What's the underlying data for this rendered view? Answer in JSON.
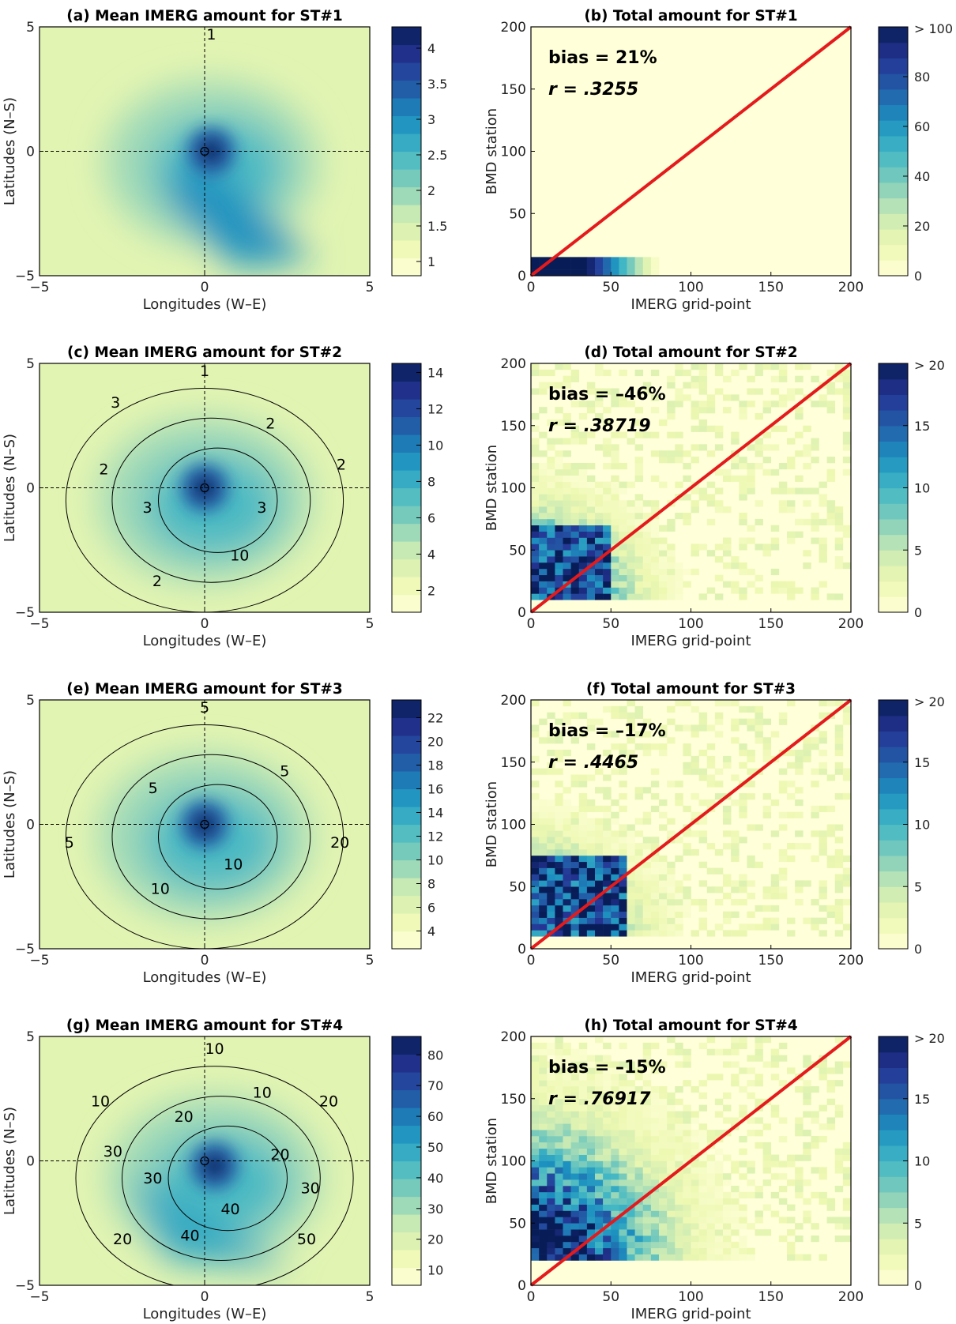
{
  "chart_data": [
    {
      "panel": "a",
      "type": "heatmap",
      "title": "(a) Mean IMERG amount for ST#1",
      "xlabel": "Longitudes (W–E)",
      "ylabel": "Latitudes (N–S)",
      "xlim": [
        -5,
        5
      ],
      "ylim": [
        -5,
        5
      ],
      "xticks": [
        "−5",
        "0",
        "5"
      ],
      "yticks": [
        "5",
        "0",
        "−5"
      ],
      "colorbar": {
        "min": 0.8,
        "max": 4.3,
        "ticks": [
          "1",
          "1.5",
          "2",
          "2.5",
          "3",
          "3.5",
          "4"
        ]
      },
      "peak": 4.3,
      "peak_lon": 0.2,
      "peak_lat": 0,
      "contour_labels": [
        "1"
      ]
    },
    {
      "panel": "b",
      "type": "heatmap",
      "title": "(b) Total amount for ST#1",
      "xlabel": "IMERG grid-point",
      "ylabel": "BMD station",
      "xlim": [
        0,
        200
      ],
      "ylim": [
        0,
        200
      ],
      "xticks": [
        "0",
        "50",
        "100",
        "150",
        "200"
      ],
      "yticks": [
        "200",
        "150",
        "100",
        "50",
        "0"
      ],
      "colorbar": {
        "min": 0,
        "max": 100,
        "ticks": [
          "0",
          "20",
          "40",
          "60",
          "80"
        ],
        "top_label": "> 100"
      },
      "annotation_bias": "bias = 21%",
      "annotation_r": "r = .3255",
      "one_to_one_line": true
    },
    {
      "panel": "c",
      "type": "heatmap",
      "title": "(c) Mean IMERG amount for ST#2",
      "xlabel": "Longitudes (W–E)",
      "ylabel": "Latitudes (N–S)",
      "xlim": [
        -5,
        5
      ],
      "ylim": [
        -5,
        5
      ],
      "xticks": [
        "−5",
        "0",
        "5"
      ],
      "yticks": [
        "5",
        "0",
        "−5"
      ],
      "colorbar": {
        "min": 0.8,
        "max": 14.5,
        "ticks": [
          "2",
          "4",
          "6",
          "8",
          "10",
          "12",
          "14"
        ]
      },
      "peak": 14.5,
      "peak_lon": 0,
      "peak_lat": 0,
      "contour_labels": [
        "1",
        "2",
        "2",
        "3",
        "10",
        "2",
        "3",
        "2",
        "3"
      ]
    },
    {
      "panel": "d",
      "type": "heatmap",
      "title": "(d) Total amount for ST#2",
      "xlabel": "IMERG grid-point",
      "ylabel": "BMD station",
      "xlim": [
        0,
        200
      ],
      "ylim": [
        0,
        200
      ],
      "xticks": [
        "0",
        "50",
        "100",
        "150",
        "200"
      ],
      "yticks": [
        "200",
        "150",
        "100",
        "50",
        "0"
      ],
      "colorbar": {
        "min": 0,
        "max": 20,
        "ticks": [
          "0",
          "5",
          "10",
          "15"
        ],
        "top_label": "> 20"
      },
      "annotation_bias": "bias = –46%",
      "annotation_r": "r = .38719",
      "one_to_one_line": true
    },
    {
      "panel": "e",
      "type": "heatmap",
      "title": "(e) Mean IMERG amount for ST#3",
      "xlabel": "Longitudes (W–E)",
      "ylabel": "Latitudes (N–S)",
      "xlim": [
        -5,
        5
      ],
      "ylim": [
        -5,
        5
      ],
      "xticks": [
        "−5",
        "0",
        "5"
      ],
      "yticks": [
        "5",
        "0",
        "−5"
      ],
      "colorbar": {
        "min": 2.5,
        "max": 23.5,
        "ticks": [
          "4",
          "6",
          "8",
          "10",
          "12",
          "14",
          "16",
          "18",
          "20",
          "22"
        ]
      },
      "peak": 23,
      "peak_lon": 0,
      "peak_lat": 0,
      "contour_labels": [
        "5",
        "5",
        "20",
        "10",
        "10",
        "5",
        "5"
      ]
    },
    {
      "panel": "f",
      "type": "heatmap",
      "title": "(f) Total amount for ST#3",
      "xlabel": "IMERG grid-point",
      "ylabel": "BMD station",
      "xlim": [
        0,
        200
      ],
      "ylim": [
        0,
        200
      ],
      "xticks": [
        "0",
        "50",
        "100",
        "150",
        "200"
      ],
      "yticks": [
        "200",
        "150",
        "100",
        "50",
        "0"
      ],
      "colorbar": {
        "min": 0,
        "max": 20,
        "ticks": [
          "0",
          "5",
          "10",
          "15"
        ],
        "top_label": "> 20"
      },
      "annotation_bias": "bias = –17%",
      "annotation_r": "r = .4465",
      "one_to_one_line": true
    },
    {
      "panel": "g",
      "type": "heatmap",
      "title": "(g) Mean IMERG amount for ST#4",
      "xlabel": "Longitudes (W–E)",
      "ylabel": "Latitudes (N–S)",
      "xlim": [
        -5,
        5
      ],
      "ylim": [
        -5,
        5
      ],
      "xticks": [
        "−5",
        "0",
        "5"
      ],
      "yticks": [
        "5",
        "0",
        "−5"
      ],
      "colorbar": {
        "min": 5,
        "max": 86,
        "ticks": [
          "10",
          "20",
          "30",
          "40",
          "50",
          "60",
          "70",
          "80"
        ]
      },
      "peak": 86,
      "peak_lon": 0.3,
      "peak_lat": -0.2,
      "contour_labels": [
        "10",
        "10",
        "20",
        "20",
        "30",
        "50",
        "40",
        "40",
        "20",
        "30",
        "30",
        "10",
        "20"
      ]
    },
    {
      "panel": "h",
      "type": "heatmap",
      "title": "(h) Total amount for ST#4",
      "xlabel": "IMERG grid-point",
      "ylabel": "BMD station",
      "xlim": [
        0,
        200
      ],
      "ylim": [
        0,
        200
      ],
      "xticks": [
        "0",
        "50",
        "100",
        "150",
        "200"
      ],
      "yticks": [
        "200",
        "150",
        "100",
        "50",
        "0"
      ],
      "colorbar": {
        "min": 0,
        "max": 20,
        "ticks": [
          "0",
          "5",
          "10",
          "15"
        ],
        "top_label": "> 20"
      },
      "annotation_bias": "bias = –15%",
      "annotation_r": "r = .76917",
      "one_to_one_line": true
    }
  ],
  "colors": {
    "colormap": [
      "#ffffd9",
      "#edf8b1",
      "#c7e9b4",
      "#7fcdbb",
      "#41b6c4",
      "#1d91c0",
      "#225ea8",
      "#253494",
      "#081d58"
    ],
    "one_to_one_line": "#e41a1c",
    "contour": "#000000"
  }
}
